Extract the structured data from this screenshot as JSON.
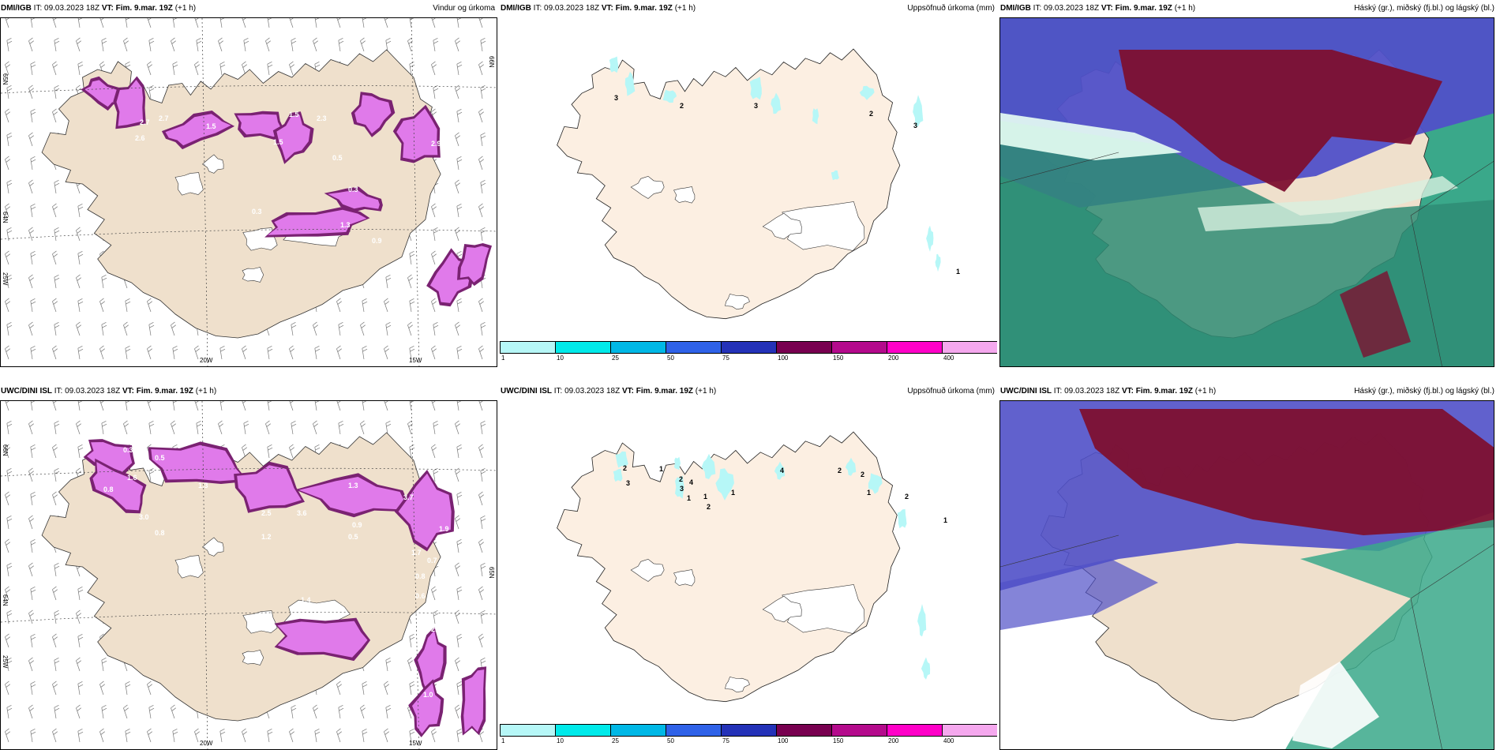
{
  "rows": [
    {
      "model": "DMI/IGB",
      "it_label": "IT:",
      "it_value": "09.03.2023 18Z",
      "vt_label": "VT:",
      "vt_value": "Fim. 9.mar. 19Z",
      "lead": "(+1 h)",
      "panels": [
        {
          "title": "Vindur og úrkoma",
          "lat_labels": [
            "65N",
            "64N",
            "25W",
            "66N"
          ],
          "lon_labels": [
            "20W",
            "15W"
          ],
          "precip_labels": [
            "2.7",
            "2.6",
            "2.7",
            "1.5",
            "1.5",
            "2.3",
            "1.5",
            "2.9",
            "0.5",
            "0.3",
            "0.3",
            "0.9",
            "1.3",
            "0.9"
          ]
        },
        {
          "title": "Uppsöfnuð úrkoma (mm)",
          "accum_labels": [
            "3",
            "2",
            "3",
            "2",
            "3",
            "1"
          ]
        },
        {
          "title": "Háský (gr.), miðský (fj.bl.) og lágský (bl.)"
        }
      ]
    },
    {
      "model": "UWC/DINI ISL",
      "it_label": "IT:",
      "it_value": "09.03.2023 18Z",
      "vt_label": "VT:",
      "vt_value": "Fim. 9.mar. 19Z",
      "lead": "(+1 h)",
      "panels": [
        {
          "title": "",
          "lat_labels": [
            "66N",
            "64N",
            "25W",
            "65N"
          ],
          "lon_labels": [
            "20W",
            "15W"
          ],
          "precip_labels": [
            "0.3",
            "0.5",
            "1.6",
            "0.8",
            "3.0",
            "0.8",
            "1.3",
            "2.5",
            "3.6",
            "1.3",
            "1.2",
            "0.5",
            "0.9",
            "3.7",
            "1.9",
            "1.7",
            "0.7",
            "0.8",
            "1.4",
            "0.6",
            "2.5",
            "1.0",
            "0.8"
          ]
        },
        {
          "title": "Uppsöfnuð úrkoma (mm)",
          "accum_labels": [
            "2",
            "3",
            "1",
            "2",
            "3",
            "4",
            "1",
            "1",
            "2",
            "1",
            "4",
            "2",
            "2",
            "1",
            "2",
            "1"
          ]
        },
        {
          "title": "Háský (gr.), miðský (fj.bl.) og lágský (bl.)"
        }
      ]
    }
  ],
  "colorbar": {
    "ticks": [
      "1",
      "10",
      "25",
      "50",
      "75",
      "100",
      "150",
      "200",
      "400"
    ],
    "colors": [
      "#b6f7f7",
      "#00eaea",
      "#00b8e6",
      "#2f62e8",
      "#2432b8",
      "#780050",
      "#b40a8c",
      "#ff00c8",
      "#f5a8ee"
    ]
  },
  "colors": {
    "land": "#efe0cc",
    "land_accum": "#fcefe2",
    "precip_light": "#e07aea",
    "precip_dark": "#7a2272",
    "high_cloud": "#7d1030",
    "mid_cloud": "#5050c8",
    "low_cloud": "#3aa88a"
  }
}
